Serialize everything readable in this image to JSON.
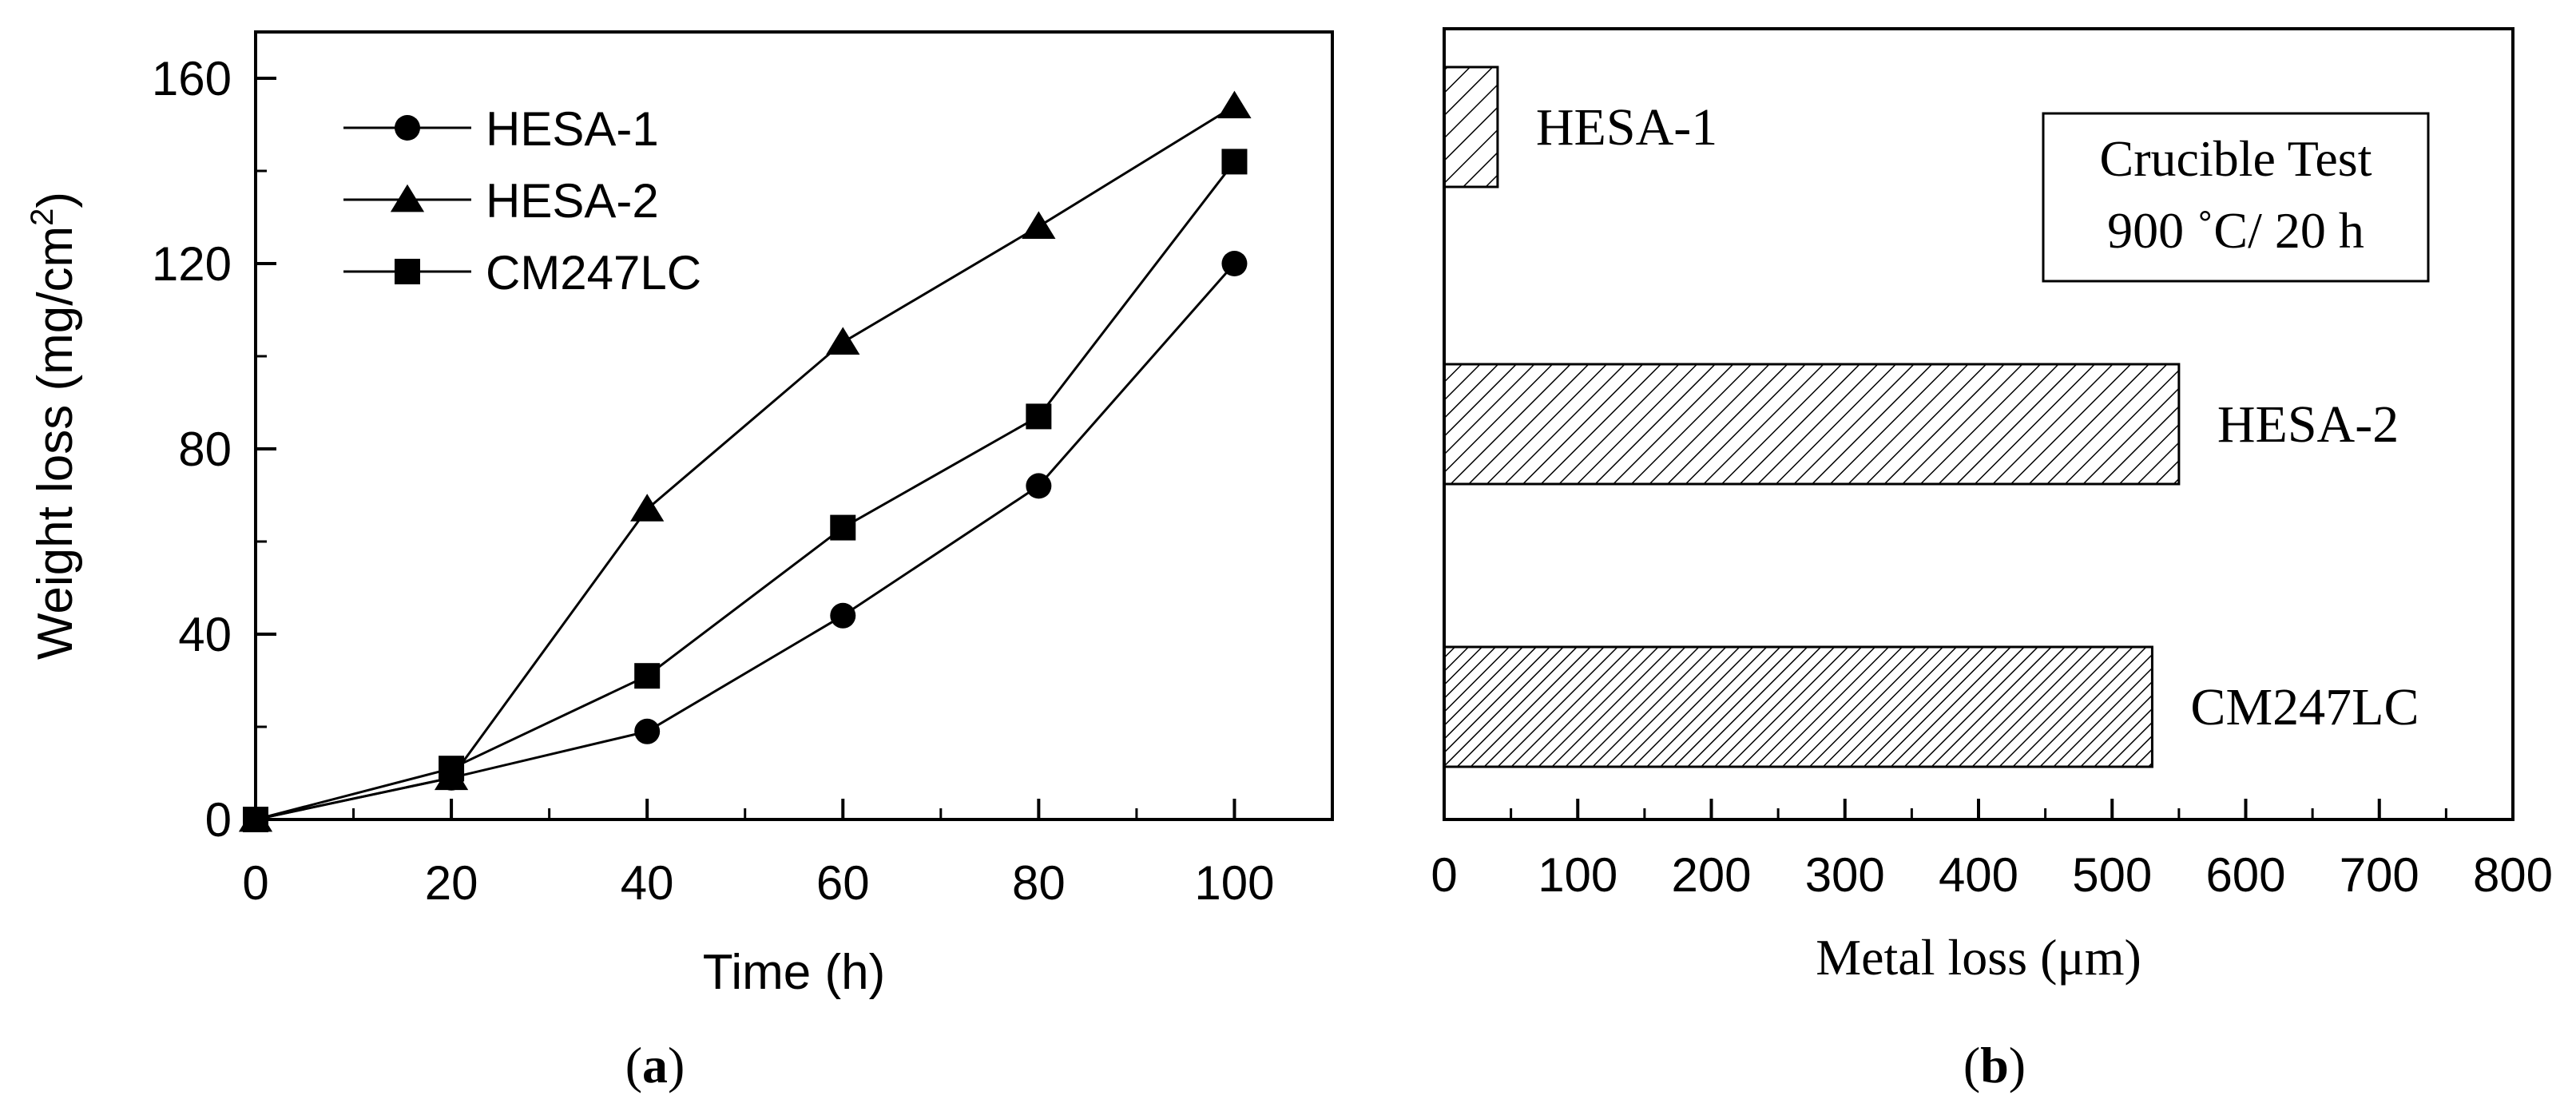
{
  "chart_data": [
    {
      "panel_label": "a",
      "type": "line",
      "xlabel": "Time (h)",
      "ylabel": "Weight loss (mg/cm²)",
      "ylabel_base": "Weight loss (mg/cm",
      "ylabel_sup": "2",
      "ylabel_tail": ")",
      "xlim": [
        0,
        110
      ],
      "ylim": [
        0,
        170
      ],
      "xticks": [
        0,
        20,
        40,
        60,
        80,
        100
      ],
      "yticks": [
        0,
        40,
        80,
        120,
        160
      ],
      "x": [
        0,
        20,
        40,
        60,
        80,
        100
      ],
      "legend_position": "top-left",
      "series": [
        {
          "name": "HESA-1",
          "marker": "circle",
          "values": [
            0,
            9,
            19,
            44,
            72,
            120
          ]
        },
        {
          "name": "HESA-2",
          "marker": "triangle",
          "values": [
            0,
            9,
            67,
            103,
            128,
            154
          ]
        },
        {
          "name": "CM247LC",
          "marker": "square",
          "values": [
            0,
            11,
            31,
            63,
            87,
            142
          ]
        }
      ]
    },
    {
      "panel_label": "b",
      "type": "bar",
      "orientation": "horizontal",
      "xlabel": "Metal loss (μm)",
      "xlim": [
        0,
        800
      ],
      "xticks": [
        0,
        100,
        200,
        300,
        400,
        500,
        600,
        700,
        800
      ],
      "categories": [
        "HESA-1",
        "HESA-2",
        "CM247LC"
      ],
      "values": [
        40,
        550,
        530
      ],
      "annotation": {
        "line1": "Crucible Test",
        "line2": "900 ˚C/ 20 h"
      }
    }
  ]
}
